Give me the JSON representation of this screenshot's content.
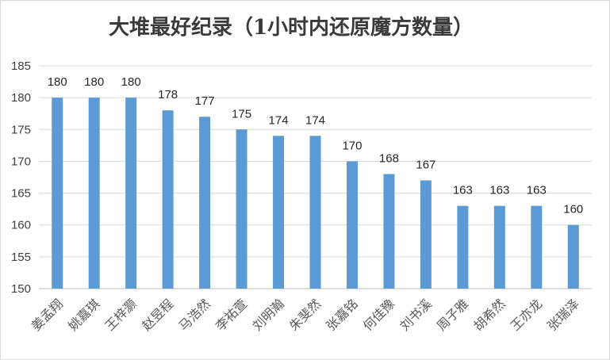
{
  "chart_data": {
    "type": "bar",
    "title": "大堆最好纪录（1小时内还原魔方数量）",
    "xlabel": "",
    "ylabel": "",
    "ylim": [
      150,
      185
    ],
    "yticks": [
      150,
      155,
      160,
      165,
      170,
      175,
      180,
      185
    ],
    "grid": true,
    "legend": "none",
    "bar_color": "#5b9bd5",
    "categories": [
      "姜孟翔",
      "姚嘉琪",
      "王梓灏",
      "赵昱程",
      "马浩然",
      "李祐萱",
      "刘明瀚",
      "朱斐然",
      "张嘉铭",
      "何佳豫",
      "刘书溪",
      "周子雅",
      "胡希然",
      "王亦龙",
      "张瑞泽"
    ],
    "values": [
      180,
      180,
      180,
      178,
      177,
      175,
      174,
      174,
      170,
      168,
      167,
      163,
      163,
      163,
      160
    ],
    "data_labels": true
  }
}
